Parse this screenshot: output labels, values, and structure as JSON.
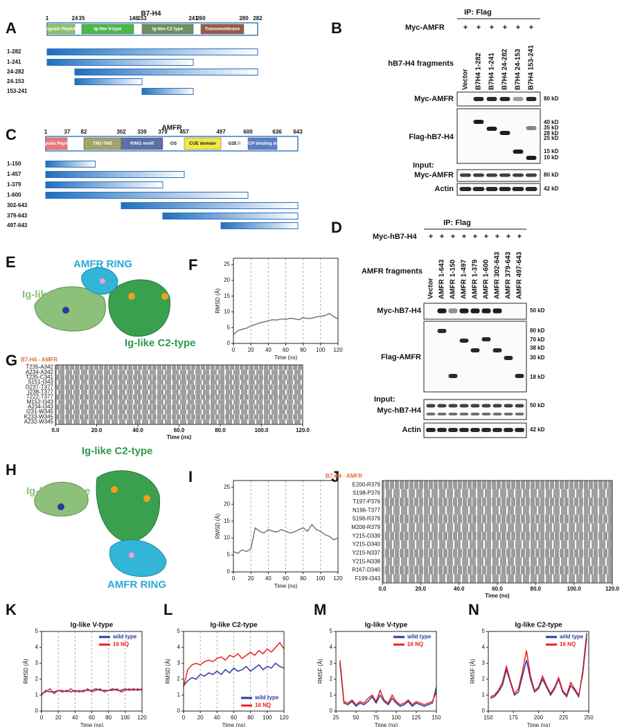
{
  "panel_labels": [
    "A",
    "B",
    "C",
    "D",
    "E",
    "F",
    "G",
    "H",
    "I",
    "J",
    "K",
    "L",
    "M",
    "N"
  ],
  "a": {
    "title": "B7-H4",
    "positions": [
      1,
      24,
      35,
      146,
      153,
      241,
      260,
      280,
      282
    ],
    "domains": [
      {
        "label": "Signals Peptide",
        "start": 1,
        "end": 24,
        "color": "#8cc46b"
      },
      {
        "label": "Ig-like V-type",
        "start": 35,
        "end": 146,
        "color": "#4cb84a"
      },
      {
        "label": "Ig-like-C2 type",
        "start": 153,
        "end": 241,
        "color": "#6e8f5e"
      },
      {
        "label": "Transmembrane",
        "start": 260,
        "end": 280,
        "color": "#9b5a48"
      }
    ],
    "fragments": [
      {
        "label": "1-282",
        "start": 1,
        "end": 282
      },
      {
        "label": "1-241",
        "start": 1,
        "end": 241
      },
      {
        "label": "24-282",
        "start": 24,
        "end": 282
      },
      {
        "label": "24-153",
        "start": 24,
        "end": 153
      },
      {
        "label": "153-241",
        "start": 153,
        "end": 241
      }
    ]
  },
  "c": {
    "title": "AMFR",
    "positions": [
      1,
      37,
      82,
      302,
      339,
      379,
      457,
      497,
      600,
      636,
      643
    ],
    "domains": [
      {
        "label": "Signals Peptide",
        "start": 1,
        "end": 37,
        "color": "#e8787a"
      },
      {
        "label": "TM1-TM5",
        "start": 82,
        "end": 302,
        "color": "#a3a36a"
      },
      {
        "label": "RING motif",
        "start": 302,
        "end": 379,
        "color": "#5b6fa8"
      },
      {
        "label": "OS",
        "start": 379,
        "end": 457,
        "color": "none"
      },
      {
        "label": "CUE domain",
        "start": 457,
        "end": 497,
        "color": "#f0e84a"
      },
      {
        "label": "G2BR",
        "start": 497,
        "end": 600,
        "color": "none"
      },
      {
        "label": "P97/VCP binding domain",
        "start": 600,
        "end": 636,
        "color": "#5b7fc0"
      }
    ],
    "fragments": [
      {
        "label": "1-150",
        "start": 1,
        "end": 150
      },
      {
        "label": "1-457",
        "start": 1,
        "end": 457
      },
      {
        "label": "1-379",
        "start": 1,
        "end": 379
      },
      {
        "label": "1-600",
        "start": 1,
        "end": 600
      },
      {
        "label": "302-643",
        "start": 302,
        "end": 643
      },
      {
        "label": "379-643",
        "start": 379,
        "end": 643
      },
      {
        "label": "497-643",
        "start": 497,
        "end": 643
      }
    ]
  },
  "b": {
    "ip": "IP: Flag",
    "row": "Myc-AMFR",
    "plus": [
      "+",
      "+",
      "+",
      "+",
      "+",
      "+"
    ],
    "lanes": [
      "Vector",
      "B7H4 1-282",
      "B7H4 1-241",
      "B7H4 24-282",
      "B7H4 24-153",
      "B7H4 153-241"
    ],
    "fragments_label": "hB7-H4 fragments",
    "input": "Input:",
    "blots": [
      "Myc-AMFR",
      "Flag-hB7-H4",
      "Myc-AMFR",
      "Actin"
    ],
    "kd": [
      "80 kD",
      "40 kD",
      "35 kD",
      "28 kD",
      "25 kD",
      "15 kD",
      "10 kD",
      "80 kD",
      "42 kD"
    ]
  },
  "d": {
    "ip": "IP: Flag",
    "row": "Myc-hB7-H4",
    "plus": [
      "+",
      "+",
      "+",
      "+",
      "+",
      "+",
      "+",
      "+",
      "+"
    ],
    "lanes": [
      "Vector",
      "AMFR 1-643",
      "AMFR 1-150",
      "AMFR 1-497",
      "AMFR 1-379",
      "AMFR 1-600",
      "AMFR 302-643",
      "AMFR 379-643",
      "AMFR 497-643"
    ],
    "fragments_label": "AMFR fragments",
    "input": "Input:",
    "blots": [
      "Myc-hB7-H4",
      "Flag-AMFR",
      "Myc-hB7-H4",
      "Actin"
    ],
    "kd": [
      "50 kD",
      "80 kD",
      "70 kD",
      "38 kD",
      "30 kD",
      "18 kD",
      "50 kD",
      "42 kD"
    ]
  },
  "e": {
    "labels": [
      "AMFR RING",
      "Ig-like V-type",
      "Ig-like C2-type"
    ]
  },
  "h": {
    "labels": [
      "Ig-like C2-type",
      "Ig-like V-type",
      "AMFR RING"
    ]
  },
  "g": {
    "title": "B7-H4 - AMFR",
    "xlabel": "Time (ns)",
    "xlim": [
      0,
      120
    ],
    "rows": [
      "T235-A342",
      "A234-A342",
      "T235-C341",
      "S151-I343",
      "D237-T377",
      "I238-T377",
      "T222-T377",
      "M152-I343",
      "A234-I343",
      "I231-W345",
      "K233-W345",
      "A232-W345"
    ],
    "xticks": [
      {
        "value": 0,
        "label": "0.0"
      },
      {
        "value": 20,
        "label": "20.0"
      },
      {
        "value": 40,
        "label": "40.0"
      },
      {
        "value": 60,
        "label": "60.0"
      },
      {
        "value": 80,
        "label": "80.0"
      },
      {
        "value": 100,
        "label": "100.0"
      },
      {
        "value": 120,
        "label": "120.0"
      }
    ]
  },
  "j": {
    "title": "B7-H4 - AMFR",
    "xlabel": "Time (ns)",
    "xlim": [
      0,
      120
    ],
    "rows": [
      "E200-R379",
      "S198-P376",
      "T197-P376",
      "N196-T377",
      "S198-R379",
      "M208-R379",
      "Y215-D339",
      "Y215-D340",
      "Y215-N337",
      "Y215-N338",
      "R167-D340",
      "F199-I343"
    ],
    "xticks": [
      {
        "value": 0,
        "label": "0.0"
      },
      {
        "value": 20,
        "label": "20.0"
      },
      {
        "value": 40,
        "label": "40.0"
      },
      {
        "value": 60,
        "label": "60.0"
      },
      {
        "value": 80,
        "label": "80.0"
      },
      {
        "value": 100,
        "label": "100.0"
      },
      {
        "value": 120,
        "label": "120.0"
      }
    ]
  },
  "chart_data": [
    {
      "type": "line",
      "xlabel": "Time (ns)",
      "ylabel": "RMSD (Å)",
      "xlim": [
        0,
        120
      ],
      "ylim": [
        0,
        27
      ],
      "xticks": [
        0,
        20,
        40,
        60,
        80,
        100,
        120
      ],
      "yticks": [
        0,
        5,
        10,
        15,
        20,
        25
      ],
      "grid": true,
      "color": "#777777",
      "x": [
        0,
        5,
        10,
        15,
        20,
        25,
        30,
        35,
        40,
        45,
        50,
        55,
        60,
        65,
        70,
        75,
        80,
        85,
        90,
        95,
        100,
        105,
        110,
        115,
        120
      ],
      "values": [
        2.8,
        4,
        4.5,
        4.8,
        5.5,
        6,
        6.5,
        6.8,
        7.2,
        7.5,
        7.4,
        7.8,
        7.6,
        8,
        7.8,
        7.5,
        8.2,
        7.9,
        8,
        8.4,
        8.6,
        8.8,
        9.5,
        8.5,
        7.8
      ]
    },
    {
      "type": "line",
      "xlabel": "Time (ns)",
      "ylabel": "RMSD (Å)",
      "xlim": [
        0,
        120
      ],
      "ylim": [
        0,
        27
      ],
      "xticks": [
        0,
        20,
        40,
        60,
        80,
        100,
        120
      ],
      "yticks": [
        0,
        5,
        10,
        15,
        20,
        25
      ],
      "grid": true,
      "color": "#777777",
      "x": [
        0,
        5,
        10,
        15,
        20,
        25,
        30,
        35,
        40,
        45,
        50,
        55,
        60,
        65,
        70,
        75,
        80,
        85,
        90,
        95,
        100,
        105,
        110,
        115,
        120
      ],
      "values": [
        6,
        5.5,
        6.5,
        6,
        6.8,
        13,
        12,
        11.5,
        12.5,
        12,
        11.8,
        12.5,
        12,
        11.5,
        11.8,
        12.5,
        13,
        12,
        14,
        12.5,
        12,
        11,
        10.5,
        9.5,
        10
      ]
    },
    {
      "type": "line",
      "title": "Ig-like V-type",
      "xlabel": "Time (ns)",
      "ylabel": "RMSD (Å)",
      "xlim": [
        0,
        120
      ],
      "ylim": [
        0,
        5
      ],
      "xticks": [
        0,
        20,
        40,
        60,
        80,
        100,
        120
      ],
      "yticks": [
        0,
        1,
        2,
        3,
        4,
        5
      ],
      "grid": true,
      "legend": "upper right",
      "x": [
        0,
        5,
        10,
        15,
        20,
        25,
        30,
        35,
        40,
        45,
        50,
        55,
        60,
        65,
        70,
        75,
        80,
        85,
        90,
        95,
        100,
        105,
        110,
        115,
        120
      ],
      "series": [
        {
          "name": "wild type",
          "color": "#2b3a9a",
          "values": [
            1.0,
            1.3,
            1.2,
            1.2,
            1.3,
            1.2,
            1.3,
            1.2,
            1.3,
            1.2,
            1.3,
            1.3,
            1.3,
            1.4,
            1.3,
            1.3,
            1.3,
            1.4,
            1.3,
            1.3,
            1.4,
            1.3,
            1.4,
            1.3,
            1.4
          ]
        },
        {
          "name": "16 NQ",
          "color": "#e8201a",
          "values": [
            1.1,
            1.2,
            1.4,
            1.1,
            1.3,
            1.3,
            1.2,
            1.4,
            1.2,
            1.3,
            1.2,
            1.4,
            1.2,
            1.3,
            1.4,
            1.2,
            1.3,
            1.3,
            1.4,
            1.2,
            1.3,
            1.4,
            1.3,
            1.4,
            1.3
          ]
        }
      ]
    },
    {
      "type": "line",
      "title": "Ig-like C2-type",
      "xlabel": "Time (ns)",
      "ylabel": "RMSD (Å)",
      "xlim": [
        0,
        120
      ],
      "ylim": [
        0,
        5
      ],
      "xticks": [
        0,
        20,
        40,
        60,
        80,
        100,
        120
      ],
      "yticks": [
        0,
        1,
        2,
        3,
        4,
        5
      ],
      "grid": true,
      "legend": "lower right",
      "x": [
        0,
        5,
        10,
        15,
        20,
        25,
        30,
        35,
        40,
        45,
        50,
        55,
        60,
        65,
        70,
        75,
        80,
        85,
        90,
        95,
        100,
        105,
        110,
        115,
        120
      ],
      "series": [
        {
          "name": "wild type",
          "color": "#2b3a9a",
          "values": [
            1.6,
            1.9,
            2.1,
            2.0,
            2.3,
            2.2,
            2.4,
            2.3,
            2.5,
            2.3,
            2.6,
            2.4,
            2.7,
            2.5,
            2.6,
            2.8,
            2.5,
            2.7,
            2.9,
            2.6,
            2.8,
            2.7,
            3.0,
            2.8,
            2.7
          ]
        },
        {
          "name": "16 NQ",
          "color": "#e8201a",
          "values": [
            1.5,
            2.6,
            2.9,
            3.0,
            2.9,
            3.1,
            3.2,
            3.1,
            3.3,
            3.4,
            3.2,
            3.5,
            3.4,
            3.6,
            3.3,
            3.5,
            3.7,
            3.5,
            3.8,
            3.6,
            3.9,
            3.7,
            4.0,
            4.3,
            3.9
          ]
        }
      ]
    },
    {
      "type": "line",
      "title": "Ig-like V-type",
      "xlabel": "Time (ns)",
      "ylabel": "RMSF (Å)",
      "xlim": [
        25,
        150
      ],
      "ylim": [
        0,
        5
      ],
      "xticks": [
        25,
        50,
        75,
        100,
        125,
        150
      ],
      "yticks": [
        0,
        1,
        2,
        3,
        4,
        5
      ],
      "grid": false,
      "legend": "upper right",
      "x": [
        30,
        35,
        40,
        45,
        50,
        55,
        60,
        65,
        70,
        75,
        80,
        85,
        90,
        95,
        100,
        105,
        110,
        115,
        120,
        125,
        130,
        135,
        140,
        145,
        150
      ],
      "series": [
        {
          "name": "wild type",
          "color": "#2b3a9a",
          "values": [
            3.0,
            0.5,
            0.4,
            0.6,
            0.3,
            0.5,
            0.4,
            0.6,
            0.9,
            0.5,
            1.0,
            0.6,
            0.4,
            0.8,
            0.5,
            0.3,
            0.4,
            0.6,
            0.3,
            0.5,
            0.4,
            0.3,
            0.4,
            0.5,
            1.5
          ]
        },
        {
          "name": "16 NQ",
          "color": "#e8201a",
          "values": [
            3.2,
            0.6,
            0.5,
            0.7,
            0.4,
            0.6,
            0.5,
            0.8,
            1.0,
            0.6,
            1.3,
            0.7,
            0.5,
            1.0,
            0.6,
            0.4,
            0.5,
            0.7,
            0.4,
            0.6,
            0.5,
            0.4,
            0.5,
            0.6,
            1.2
          ]
        }
      ]
    },
    {
      "type": "line",
      "title": "Ig-like C2-type",
      "xlabel": "Time (ns)",
      "ylabel": "RMSF (Å)",
      "xlim": [
        150,
        250
      ],
      "ylim": [
        0,
        5
      ],
      "xticks": [
        150,
        175,
        200,
        225,
        250
      ],
      "yticks": [
        0,
        1,
        2,
        3,
        4,
        5
      ],
      "grid": false,
      "legend": "upper right",
      "x": [
        152,
        156,
        160,
        164,
        168,
        172,
        176,
        180,
        184,
        188,
        192,
        196,
        200,
        204,
        208,
        212,
        216,
        220,
        224,
        228,
        232,
        236,
        240,
        244,
        248
      ],
      "series": [
        {
          "name": "wild type",
          "color": "#2b3a9a",
          "values": [
            0.8,
            0.9,
            1.2,
            1.6,
            2.6,
            1.8,
            1.0,
            1.2,
            2.2,
            3.2,
            2.0,
            1.2,
            1.4,
            2.0,
            1.5,
            1.0,
            1.4,
            2.0,
            1.2,
            0.9,
            1.6,
            1.3,
            0.9,
            2.5,
            4.9
          ]
        },
        {
          "name": "16 NQ",
          "color": "#e8201a",
          "values": [
            0.9,
            1.0,
            1.3,
            1.8,
            2.8,
            1.9,
            1.1,
            1.4,
            2.5,
            3.8,
            2.2,
            1.3,
            1.5,
            2.2,
            1.6,
            1.1,
            1.5,
            2.1,
            1.3,
            1.0,
            1.8,
            1.4,
            1.0,
            2.3,
            4.6
          ]
        }
      ]
    }
  ]
}
